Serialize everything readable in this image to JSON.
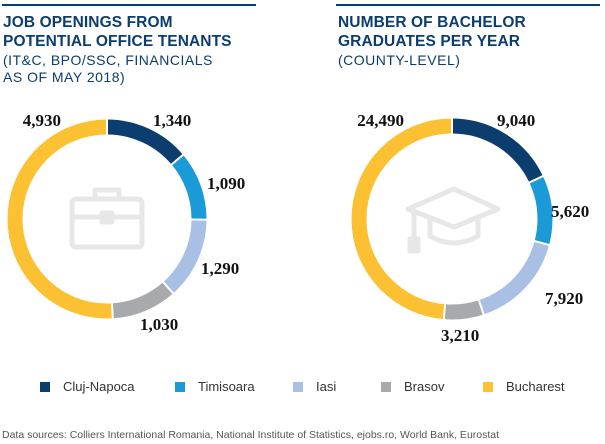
{
  "colors": {
    "Cluj-Napoca": "#0b3e6e",
    "Timisoara": "#1a9ad6",
    "Iasi": "#a9c0e4",
    "Brasov": "#a7a9ac",
    "Bucharest": "#fcc133",
    "title": "#0b3e6e",
    "icon": "#e7e7e7"
  },
  "left": {
    "title_line1": "JOB OPENINGS FROM",
    "title_line2": "POTENTIAL OFFICE TENANTS",
    "subtitle_line1": "(IT&C, BPO/SSC, FINANCIALS",
    "subtitle_line2": "AS OF MAY 2018)",
    "icon": "briefcase-icon"
  },
  "right": {
    "title_line1": "NUMBER OF BACHELOR",
    "title_line2": "GRADUATES PER YEAR",
    "subtitle_line1": "(COUNTY-LEVEL)",
    "icon": "graduation-cap-icon"
  },
  "chart_data": [
    {
      "type": "pie",
      "title": "JOB OPENINGS FROM POTENTIAL OFFICE TENANTS",
      "subtitle": "(IT&C, BPO/SSC, FINANCIALS AS OF MAY 2018)",
      "categories": [
        "Cluj-Napoca",
        "Timisoara",
        "Iasi",
        "Brasov",
        "Bucharest"
      ],
      "values": [
        1340,
        1090,
        1290,
        1030,
        4930
      ],
      "labels": [
        "1,340",
        "1,090",
        "1,290",
        "1,030",
        "4,930"
      ]
    },
    {
      "type": "pie",
      "title": "NUMBER OF BACHELOR GRADUATES PER YEAR",
      "subtitle": "(COUNTY-LEVEL)",
      "categories": [
        "Cluj-Napoca",
        "Timisoara",
        "Iasi",
        "Brasov",
        "Bucharest"
      ],
      "values": [
        9040,
        5620,
        7920,
        3210,
        24490
      ],
      "labels": [
        "9,040",
        "5,620",
        "7,920",
        "3,210",
        "24,490"
      ]
    }
  ],
  "legend": [
    {
      "label": "Cluj-Napoca",
      "color": "#0b3e6e"
    },
    {
      "label": "Timisoara",
      "color": "#1a9ad6"
    },
    {
      "label": "Iasi",
      "color": "#a9c0e4"
    },
    {
      "label": "Brasov",
      "color": "#a7a9ac"
    },
    {
      "label": "Bucharest",
      "color": "#fcc133"
    }
  ],
  "source": "Data sources: Colliers International Romania, National Institute of Statistics, ejobs.ro, World Bank, Eurostat"
}
